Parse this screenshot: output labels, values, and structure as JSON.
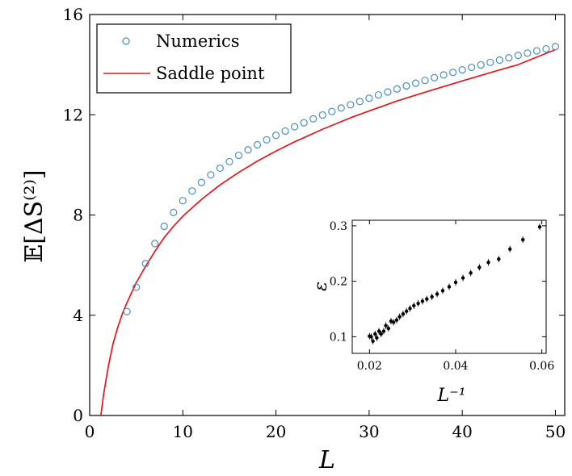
{
  "chart_data": [
    {
      "type": "scatter",
      "xlabel": "L",
      "ylabel": "𝔼[ΔS⁽²⁾]",
      "xlim": [
        0,
        51
      ],
      "ylim": [
        0,
        16
      ],
      "xticks": [
        "0",
        "10",
        "20",
        "30",
        "40",
        "50"
      ],
      "yticks": [
        "0",
        "4",
        "8",
        "12",
        "16"
      ],
      "grid": false,
      "legend_position": "top-left",
      "series": [
        {
          "name": "Numerics",
          "kind": "markers",
          "color": "#4a8ec2",
          "x": [
            4,
            5,
            6,
            7,
            8,
            9,
            10,
            11,
            12,
            13,
            14,
            15,
            16,
            17,
            18,
            19,
            20,
            21,
            22,
            23,
            24,
            25,
            26,
            27,
            28,
            29,
            30,
            31,
            32,
            33,
            34,
            35,
            36,
            37,
            38,
            39,
            40,
            41,
            42,
            43,
            44,
            45,
            46,
            47,
            48,
            49,
            50
          ],
          "y": [
            4.15,
            5.12,
            6.06,
            6.86,
            7.55,
            8.1,
            8.57,
            8.96,
            9.3,
            9.6,
            9.87,
            10.13,
            10.38,
            10.6,
            10.8,
            11.0,
            11.18,
            11.35,
            11.52,
            11.68,
            11.84,
            11.99,
            12.13,
            12.27,
            12.4,
            12.53,
            12.66,
            12.79,
            12.91,
            13.03,
            13.15,
            13.26,
            13.37,
            13.48,
            13.59,
            13.69,
            13.79,
            13.89,
            13.99,
            14.09,
            14.18,
            14.27,
            14.37,
            14.46,
            14.55,
            14.63,
            14.72
          ]
        },
        {
          "name": "Saddle point",
          "kind": "line",
          "color": "#e8141c",
          "x": [
            1.2,
            1.5,
            2,
            2.5,
            3,
            3.5,
            4,
            5,
            6,
            7,
            8,
            9,
            10,
            12,
            14,
            16,
            18,
            20,
            22,
            25,
            28,
            30,
            33,
            36,
            40,
            43,
            46,
            50
          ],
          "y": [
            0.0,
            0.85,
            1.95,
            2.85,
            3.5,
            4.05,
            4.5,
            5.3,
            5.95,
            6.55,
            7.1,
            7.55,
            7.95,
            8.62,
            9.2,
            9.7,
            10.15,
            10.55,
            10.92,
            11.42,
            11.88,
            12.15,
            12.55,
            12.9,
            13.35,
            13.68,
            14.0,
            14.6
          ]
        }
      ]
    },
    {
      "type": "scatter",
      "xlabel": "L⁻¹",
      "ylabel": "ε",
      "xlim": [
        0.016,
        0.061
      ],
      "ylim": [
        0.07,
        0.31
      ],
      "xticks": [
        "0.02",
        "0.04",
        "0.06"
      ],
      "yticks": [
        "0.1",
        "0.2",
        "0.3"
      ],
      "grid": false,
      "series": [
        {
          "color": "#000000",
          "x": [
            0.0595,
            0.0556,
            0.0526,
            0.05,
            0.0476,
            0.0455,
            0.0435,
            0.0417,
            0.04,
            0.0385,
            0.037,
            0.0357,
            0.0345,
            0.0333,
            0.0323,
            0.0313,
            0.0303,
            0.0294,
            0.0286,
            0.0278,
            0.027,
            0.0263,
            0.0256,
            0.025,
            0.0244,
            0.0238,
            0.0233,
            0.0227,
            0.0222,
            0.0217,
            0.0213,
            0.0208,
            0.0204,
            0.02
          ],
          "y": [
            0.298,
            0.275,
            0.258,
            0.24,
            0.234,
            0.225,
            0.215,
            0.206,
            0.198,
            0.19,
            0.183,
            0.177,
            0.172,
            0.168,
            0.164,
            0.16,
            0.156,
            0.151,
            0.146,
            0.141,
            0.136,
            0.13,
            0.126,
            0.128,
            0.115,
            0.12,
            0.11,
            0.105,
            0.11,
            0.098,
            0.105,
            0.092,
            0.1,
            0.101
          ]
        }
      ]
    }
  ]
}
